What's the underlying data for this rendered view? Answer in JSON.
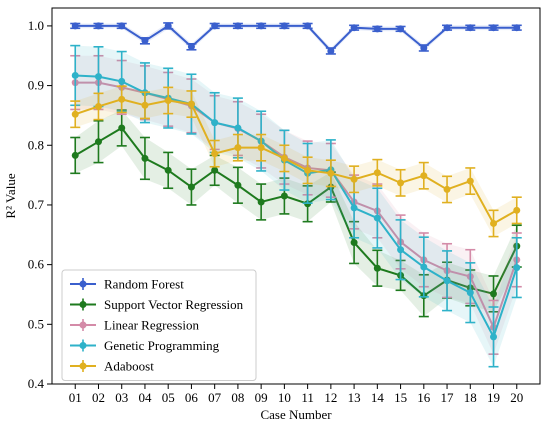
{
  "chart_data": {
    "type": "line",
    "title": "",
    "xlabel": "Case Number",
    "ylabel": "R² Value",
    "ylim": [
      0.4,
      1.03
    ],
    "yticks": [
      "0.4",
      "0.5",
      "0.6",
      "0.7",
      "0.8",
      "0.9",
      "1.0"
    ],
    "grid": false,
    "legend_position": "lower-left",
    "categories": [
      "01",
      "02",
      "03",
      "04",
      "05",
      "06",
      "07",
      "08",
      "09",
      "10",
      "11",
      "12",
      "13",
      "14",
      "15",
      "16",
      "17",
      "18",
      "19",
      "20"
    ],
    "series": [
      {
        "name": "Random Forest",
        "color": "#3a5fcd",
        "values": [
          1.0,
          1.0,
          1.0,
          0.975,
          1.0,
          0.965,
          1.0,
          1.0,
          1.0,
          1.0,
          1.0,
          0.958,
          0.997,
          0.995,
          0.995,
          0.963,
          0.997,
          0.997,
          0.997,
          0.997
        ],
        "errors": [
          0.004,
          0.004,
          0.004,
          0.005,
          0.005,
          0.005,
          0.004,
          0.004,
          0.004,
          0.004,
          0.004,
          0.005,
          0.004,
          0.004,
          0.004,
          0.005,
          0.004,
          0.004,
          0.004,
          0.004
        ]
      },
      {
        "name": "Support Vector Regression",
        "color": "#1e7a1e",
        "values": [
          0.783,
          0.806,
          0.829,
          0.778,
          0.758,
          0.73,
          0.758,
          0.733,
          0.705,
          0.715,
          0.702,
          0.73,
          0.637,
          0.594,
          0.582,
          0.548,
          0.574,
          0.561,
          0.551,
          0.631
        ],
        "errors": [
          0.03,
          0.035,
          0.03,
          0.035,
          0.03,
          0.03,
          0.025,
          0.03,
          0.03,
          0.03,
          0.03,
          0.025,
          0.035,
          0.03,
          0.025,
          0.035,
          0.03,
          0.03,
          0.03,
          0.035
        ]
      },
      {
        "name": "Linear Regression",
        "color": "#d48ba8",
        "values": [
          0.905,
          0.905,
          0.897,
          0.888,
          0.877,
          0.866,
          0.838,
          0.828,
          0.807,
          0.78,
          0.762,
          0.758,
          0.705,
          0.69,
          0.638,
          0.608,
          0.59,
          0.58,
          0.495,
          0.608
        ],
        "errors": [
          0.045,
          0.045,
          0.045,
          0.045,
          0.045,
          0.045,
          0.045,
          0.045,
          0.045,
          0.045,
          0.045,
          0.045,
          0.045,
          0.045,
          0.045,
          0.045,
          0.045,
          0.045,
          0.045,
          0.045
        ]
      },
      {
        "name": "Genetic Programming",
        "color": "#2eb2c9",
        "values": [
          0.917,
          0.915,
          0.907,
          0.888,
          0.879,
          0.869,
          0.838,
          0.829,
          0.807,
          0.775,
          0.753,
          0.759,
          0.695,
          0.678,
          0.625,
          0.596,
          0.573,
          0.553,
          0.479,
          0.595
        ],
        "errors": [
          0.05,
          0.05,
          0.05,
          0.05,
          0.05,
          0.05,
          0.05,
          0.05,
          0.05,
          0.05,
          0.05,
          0.05,
          0.05,
          0.05,
          0.05,
          0.05,
          0.05,
          0.05,
          0.05,
          0.05
        ]
      },
      {
        "name": "Adaboost",
        "color": "#e0b020",
        "values": [
          0.852,
          0.865,
          0.877,
          0.867,
          0.875,
          0.869,
          0.786,
          0.796,
          0.796,
          0.778,
          0.758,
          0.753,
          0.743,
          0.754,
          0.737,
          0.749,
          0.726,
          0.74,
          0.669,
          0.691
        ],
        "errors": [
          0.022,
          0.022,
          0.022,
          0.022,
          0.022,
          0.022,
          0.022,
          0.022,
          0.022,
          0.022,
          0.022,
          0.022,
          0.022,
          0.022,
          0.022,
          0.022,
          0.022,
          0.022,
          0.022,
          0.022
        ]
      }
    ]
  }
}
